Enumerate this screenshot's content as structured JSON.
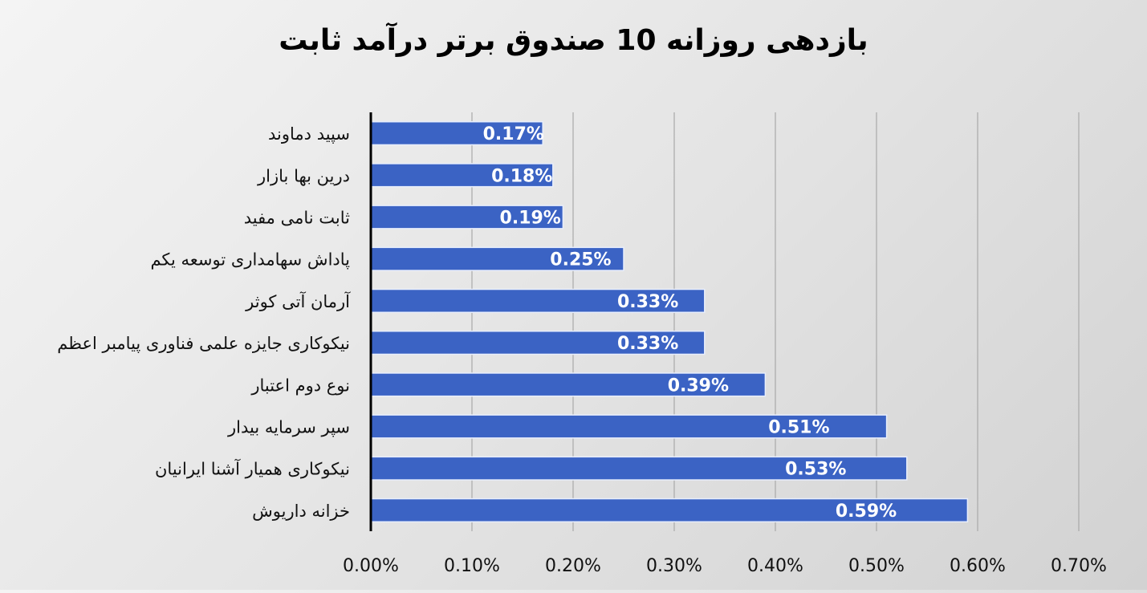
{
  "chart_data": {
    "type": "bar",
    "orientation": "horizontal",
    "title": "بازدهی روزانه 10 صندوق برتر درآمد ثابت",
    "categories": [
      "سپید دماوند",
      "درین بها بازار",
      "ثابت نامی مفید",
      "پاداش سهامداری توسعه یکم",
      "آرمان آتی کوثر",
      "نیکوکاری جایزه علمی فناوری پیامبر اعظم",
      "نوع دوم اعتبار",
      "سپر سرمایه بیدار",
      "نیکوکاری همیار آشنا ایرانیان",
      "خزانه داریوش"
    ],
    "values": [
      0.17,
      0.18,
      0.19,
      0.25,
      0.33,
      0.33,
      0.39,
      0.51,
      0.53,
      0.59
    ],
    "value_labels": [
      "0.17%",
      "0.18%",
      "0.19%",
      "0.25%",
      "0.33%",
      "0.33%",
      "0.39%",
      "0.51%",
      "0.53%",
      "0.59%"
    ],
    "x_ticks": [
      0,
      0.1,
      0.2,
      0.3,
      0.4,
      0.5,
      0.6,
      0.7
    ],
    "x_tick_labels": [
      "0.00%",
      "0.10%",
      "0.20%",
      "0.30%",
      "0.40%",
      "0.50%",
      "0.60%",
      "0.70%"
    ],
    "xlim": [
      0,
      0.7
    ],
    "xlabel": "",
    "ylabel": "",
    "grid": "vertical",
    "bar_color": "#3b63c4",
    "gridline_color": "#a9a9a9"
  }
}
